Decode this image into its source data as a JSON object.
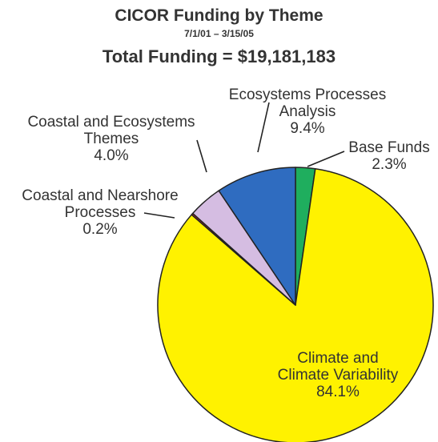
{
  "header": {
    "title": "CICOR Funding by Theme",
    "date_range": "7/1/01 – 3/15/05",
    "total": "Total Funding = $19,181,183"
  },
  "chart_data": {
    "type": "pie",
    "title": "CICOR Funding by Theme",
    "subtitle": "7/1/01 – 3/15/05",
    "total_label": "Total Funding = $19,181,183",
    "slices": [
      {
        "label_lines": [
          "Base Funds"
        ],
        "pct_label": "2.3%",
        "value": 2.3,
        "color": "#1fae5e"
      },
      {
        "label_lines": [
          "Climate and",
          "Climate Variability"
        ],
        "pct_label": "84.1%",
        "value": 84.1,
        "color": "#fff200"
      },
      {
        "label_lines": [
          "Coastal and Nearshore",
          "Processes"
        ],
        "pct_label": "0.2%",
        "value": 0.2,
        "color": "#d9262b"
      },
      {
        "label_lines": [
          "Coastal and Ecosystems",
          "Themes"
        ],
        "pct_label": "4.0%",
        "value": 4.0,
        "color": "#d5bde2"
      },
      {
        "label_lines": [
          "Ecosystems Processes",
          "Analysis"
        ],
        "pct_label": "9.4%",
        "value": 9.4,
        "color": "#2f6cc0"
      }
    ],
    "start_angle_deg": 0,
    "direction": "clockwise"
  }
}
